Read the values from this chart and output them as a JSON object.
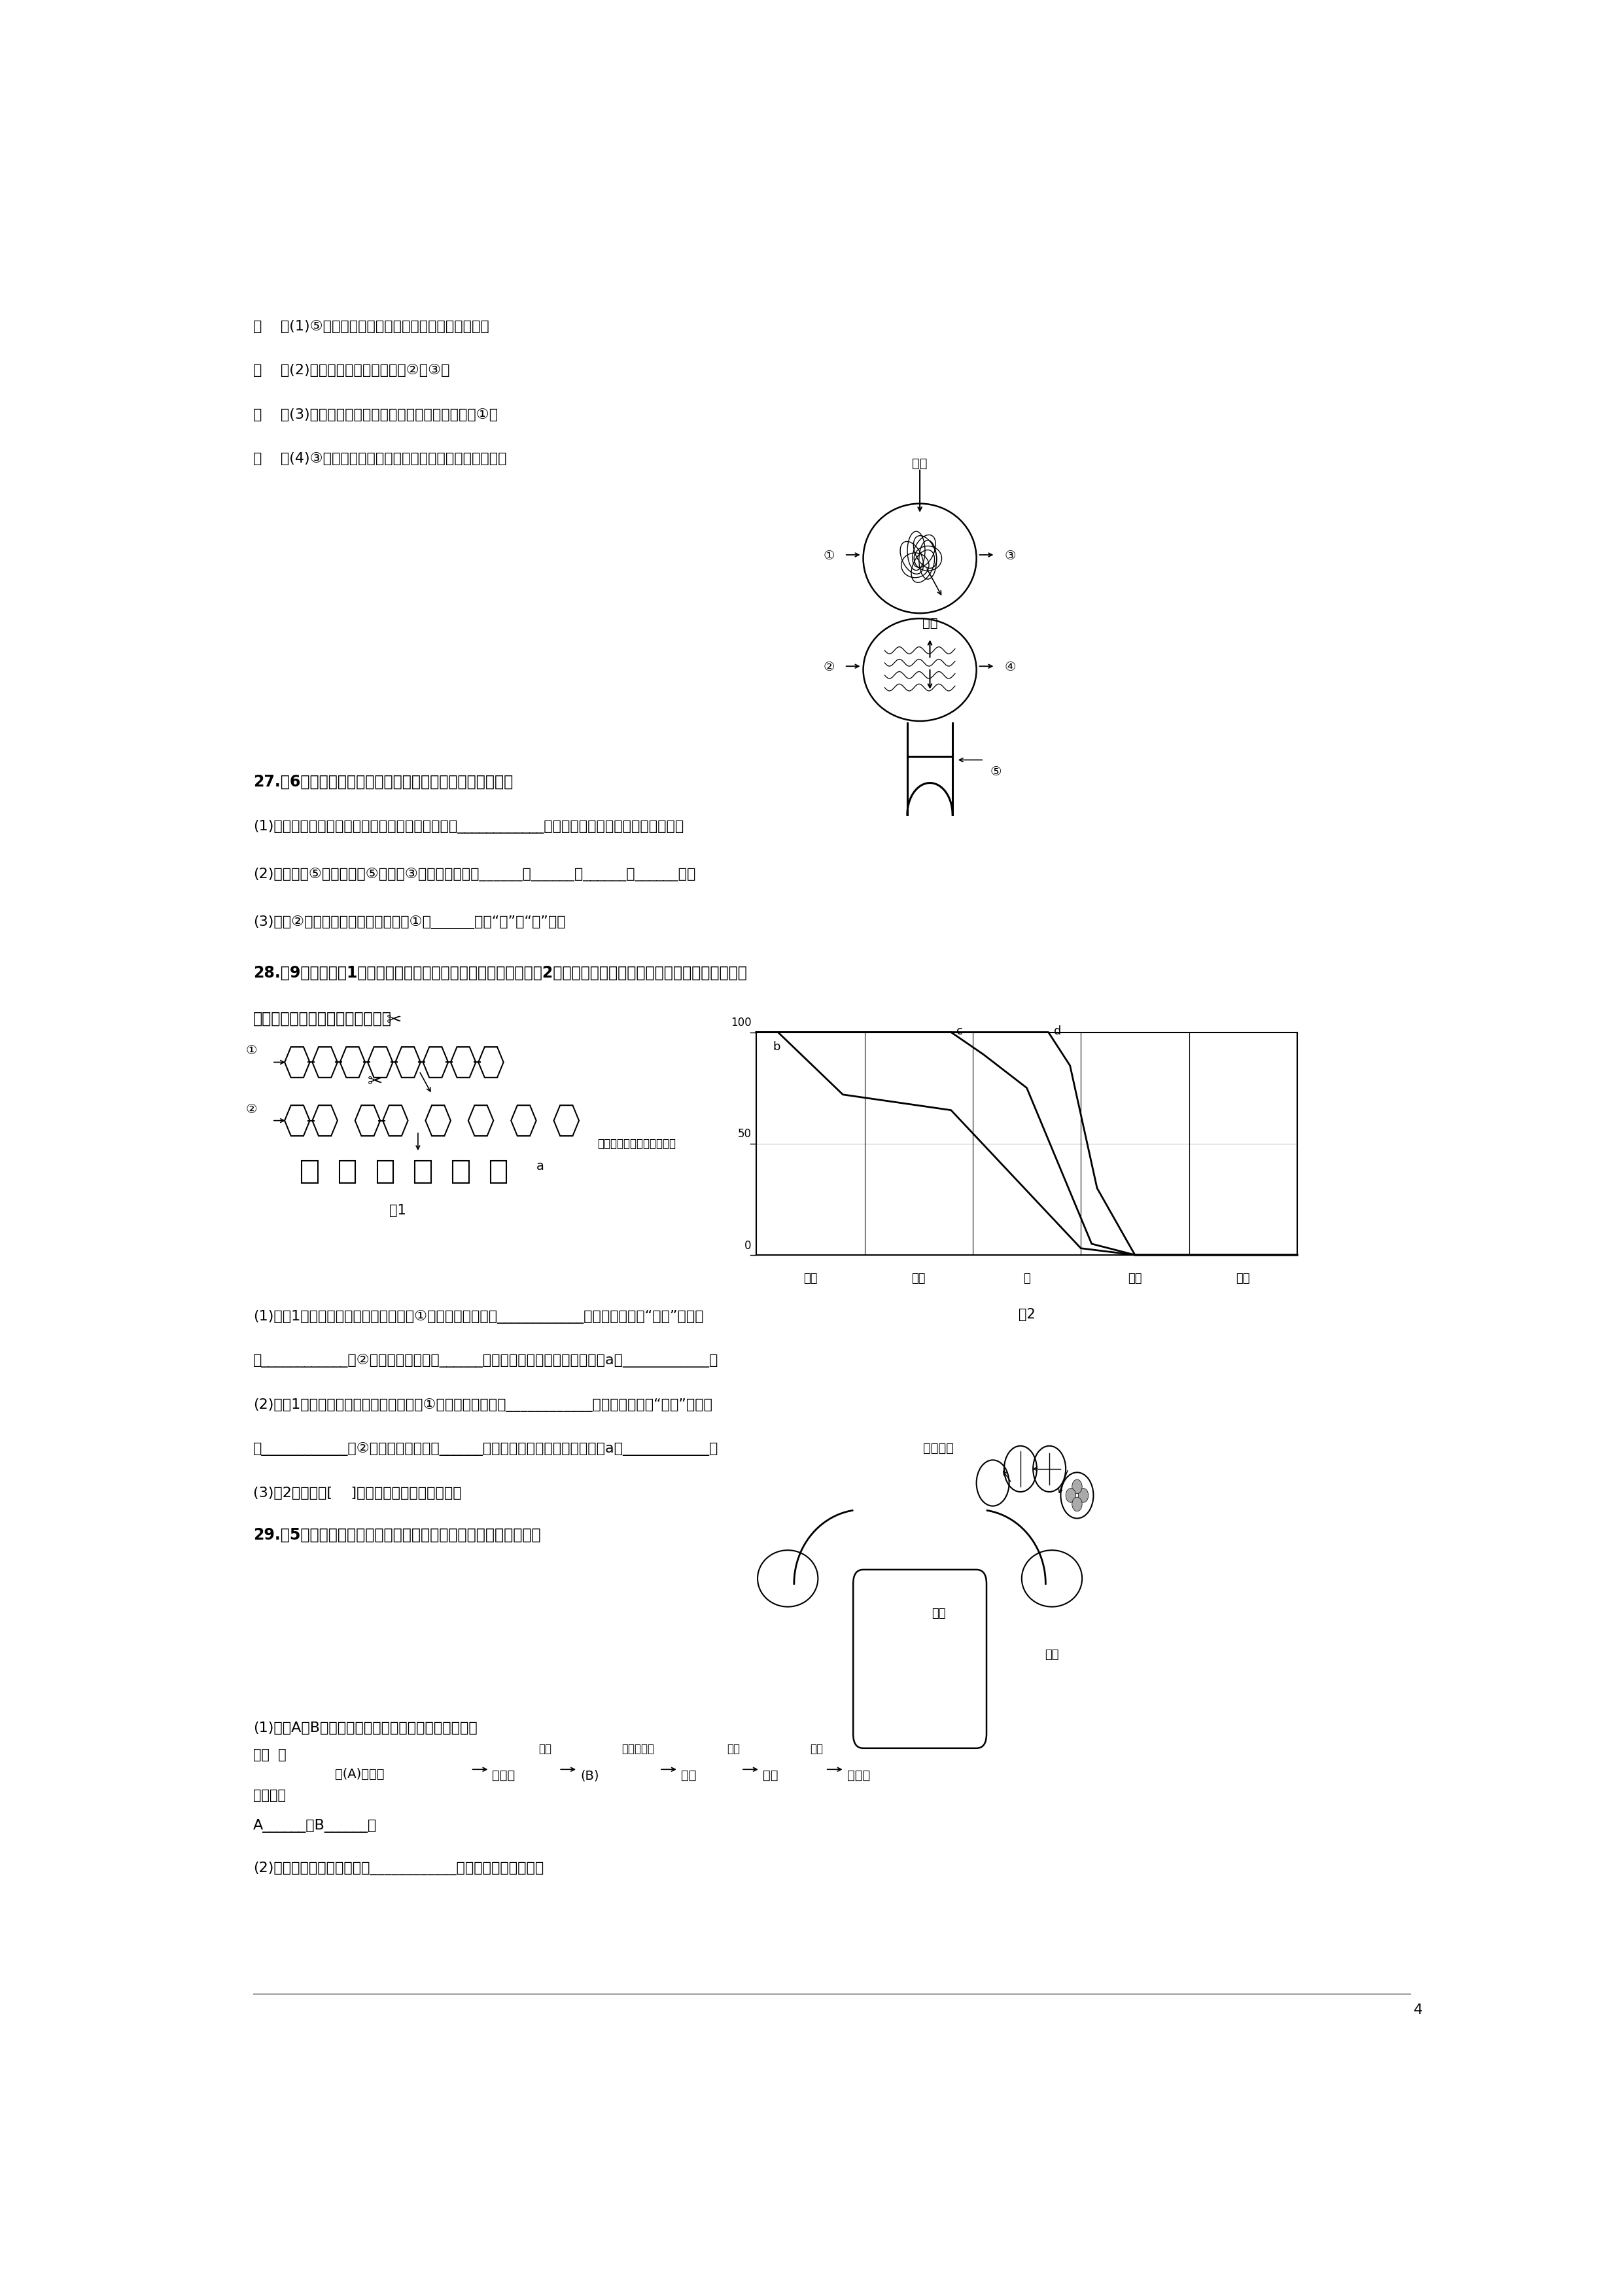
{
  "page_number": "4",
  "bg_color": "#ffffff",
  "top_items": [
    "（    ）(1)⑤是淡黄色的半透明的液体，主要成分是水。",
    "（    ）(2)血液中具有运输功能的是②和③。",
    "（    ）(3)血细胞中能穿过毛细血管具有吨噬作用的是①。",
    "（    ）(4)③的结构呢两面凹的圆盘状，主要运输二氧化碳。"
  ],
  "q27_text": "27.（6分）右图是尿液形成示意图，请据图回答下列问题。",
  "q27_1": "(1)尿液的形成主要与肾单位有关，肾单位由图中的____________（用图中数字回答）三个部分构成。",
  "q27_2": "(2)血液流经⑤时，可以从⑤过滤到③的物质有一部分______、______、______、______等。",
  "q27_3": "(3)血管②中大分子物质的浓度比血管①中______（填“高”或“低”）。",
  "q28_text1": "28.（9分）下面图1模拟的是淠粉、蛋白质和脂肪的消化过程；图2表示淠粉、蛋白质和脂肪在消化道中各部位被消",
  "q28_text2": "化的程度。请据图回答下列问题。",
  "q28_1": "(1)若图1模拟的是淠粉的消化过程，则①所表示的过程是在____________内进行的，图中“剪刀”模拟的",
  "q28_1b": "是____________；②所表示的过程是在______内进行的，最终被分解成的物质a是____________。",
  "q28_2": "(2)若图1模拟的是蛋白质的消化过程，则①所表示的过程是在____________内进行的，图中“剪刀”模拟的",
  "q28_2b": "是____________；②所表示的过程是在______内进行的，最终被分解成的物质a是____________。",
  "q28_3": "(3)图2中，曲线[    ]表示的是脂肪的消化过程。",
  "q29_text": "29.（5分）根据排卵、受精和开始怀孕的示意图，回答以下问题。",
  "q29_1": "(1)填出A、B的名称，完善下列人的生殖过程流程图。",
  "q29_ab": "A______，B______。",
  "q29_2": "(2)从青春期开始，卵巢内的____________陆续发育成熟并排出。",
  "organs": [
    "口腔",
    "食道",
    "胃",
    "小肠",
    "大肠"
  ],
  "fig2_ylabel": "未被消化营养物质的百分比"
}
